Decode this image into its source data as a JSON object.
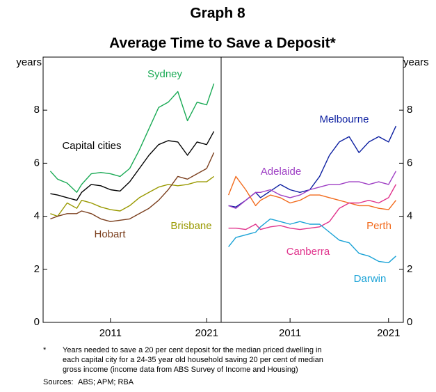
{
  "title": "Graph 8",
  "subtitle": "Average Time to Save a Deposit*",
  "footnote": {
    "marker": "*",
    "lines": [
      "Years needed to save a 20 per cent deposit for the median priced dwelling in",
      "each capital city for a 24-35 year old household saving 20 per cent of median",
      "gross income (income data from ABS Survey of Income and Housing)"
    ]
  },
  "sources_label": "Sources:",
  "sources": "ABS; APM; RBA",
  "chart_data": [
    {
      "type": "line",
      "ylabel": "years",
      "xlim": [
        2004,
        2022.5
      ],
      "xticks": [
        2011,
        2021
      ],
      "ylim": [
        0,
        10
      ],
      "yticks": [
        0,
        2,
        4,
        6,
        8
      ],
      "x": [
        2004.75,
        2005.5,
        2006.5,
        2007.5,
        2008,
        2009,
        2010,
        2011,
        2012,
        2013,
        2014,
        2015,
        2016,
        2017,
        2018,
        2019,
        2020,
        2021,
        2021.75
      ],
      "series": [
        {
          "name": "Sydney",
          "color": "#1aaa55",
          "values": [
            5.7,
            5.4,
            5.25,
            4.9,
            5.2,
            5.6,
            5.65,
            5.6,
            5.5,
            5.8,
            6.5,
            7.3,
            8.1,
            8.3,
            8.7,
            7.6,
            8.3,
            8.2,
            9.0
          ]
        },
        {
          "name": "Capital cities",
          "color": "#000000",
          "values": [
            4.85,
            4.8,
            4.7,
            4.6,
            4.9,
            5.2,
            5.15,
            5.0,
            4.95,
            5.3,
            5.8,
            6.3,
            6.7,
            6.85,
            6.8,
            6.3,
            6.8,
            6.7,
            7.2
          ]
        },
        {
          "name": "Brisbane",
          "color": "#999900",
          "values": [
            4.1,
            4.0,
            4.5,
            4.3,
            4.6,
            4.5,
            4.35,
            4.25,
            4.2,
            4.4,
            4.7,
            4.9,
            5.1,
            5.2,
            5.15,
            5.2,
            5.3,
            5.3,
            5.5
          ]
        },
        {
          "name": "Hobart",
          "color": "#7b3f1e",
          "values": [
            3.9,
            4.0,
            4.1,
            4.1,
            4.2,
            4.1,
            3.9,
            3.8,
            3.85,
            3.9,
            4.1,
            4.3,
            4.6,
            5.0,
            5.5,
            5.4,
            5.6,
            5.8,
            6.4
          ]
        }
      ]
    },
    {
      "type": "line",
      "ylabel": "years",
      "xlim": [
        2004,
        2022.5
      ],
      "xticks": [
        2011,
        2021
      ],
      "ylim": [
        0,
        10
      ],
      "yticks": [
        0,
        2,
        4,
        6,
        8
      ],
      "x": [
        2004.75,
        2005.5,
        2006.5,
        2007.5,
        2008,
        2009,
        2010,
        2011,
        2012,
        2013,
        2014,
        2015,
        2016,
        2017,
        2018,
        2019,
        2020,
        2021,
        2021.75
      ],
      "series": [
        {
          "name": "Melbourne",
          "color": "#0b1ea0",
          "values": [
            4.4,
            4.35,
            4.6,
            4.9,
            4.7,
            4.95,
            5.2,
            5.0,
            4.9,
            5.0,
            5.5,
            6.3,
            6.8,
            7.0,
            6.4,
            6.8,
            7.0,
            6.8,
            7.4
          ]
        },
        {
          "name": "Adelaide",
          "color": "#9e3fc4",
          "values": [
            4.4,
            4.3,
            4.6,
            4.9,
            4.9,
            5.0,
            4.8,
            4.7,
            4.8,
            5.0,
            5.1,
            5.2,
            5.2,
            5.3,
            5.3,
            5.2,
            5.3,
            5.2,
            5.7
          ]
        },
        {
          "name": "Perth",
          "color": "#f26b1d",
          "values": [
            4.8,
            5.5,
            5.0,
            4.4,
            4.6,
            4.8,
            4.7,
            4.5,
            4.6,
            4.8,
            4.8,
            4.7,
            4.6,
            4.5,
            4.4,
            4.4,
            4.3,
            4.25,
            4.6
          ]
        },
        {
          "name": "Canberra",
          "color": "#e0338c",
          "values": [
            3.55,
            3.55,
            3.5,
            3.7,
            3.5,
            3.6,
            3.65,
            3.55,
            3.5,
            3.55,
            3.6,
            3.8,
            4.3,
            4.5,
            4.5,
            4.6,
            4.5,
            4.7,
            5.2
          ]
        },
        {
          "name": "Darwin",
          "color": "#19a2d6",
          "values": [
            2.85,
            3.2,
            3.3,
            3.4,
            3.6,
            3.9,
            3.8,
            3.7,
            3.8,
            3.7,
            3.7,
            3.4,
            3.1,
            3.0,
            2.6,
            2.5,
            2.3,
            2.25,
            2.5
          ]
        }
      ]
    }
  ]
}
